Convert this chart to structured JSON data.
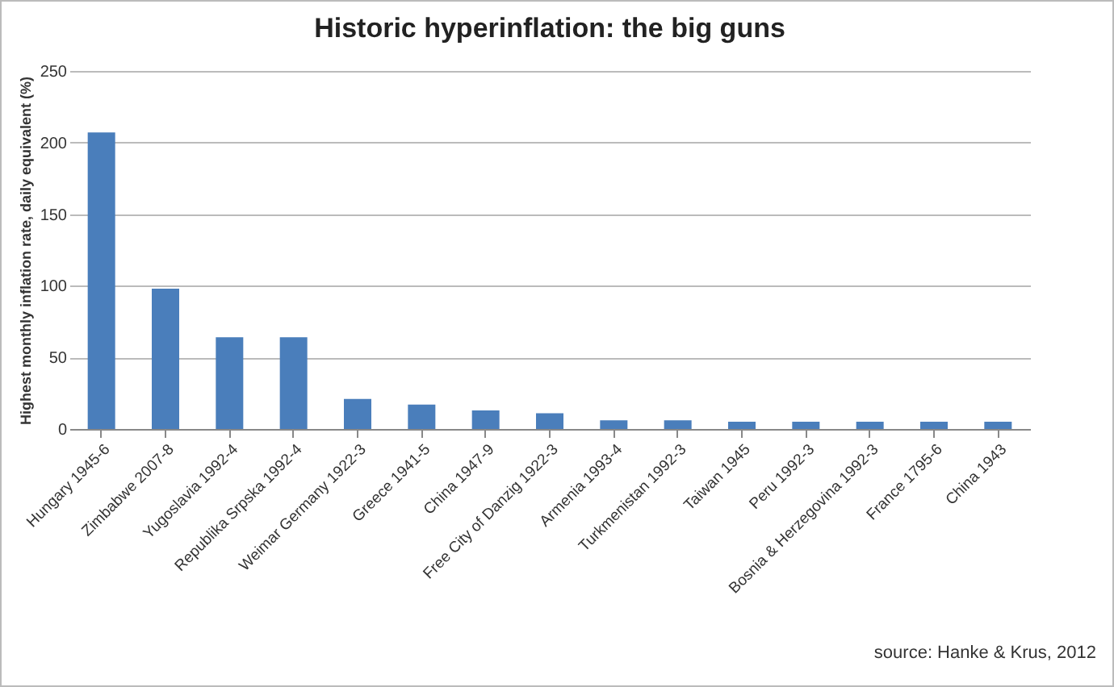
{
  "chart_data": {
    "type": "bar",
    "title": "Historic hyperinflation: the big guns",
    "ylabel": "Highest monthly inflation rate, daily equivalent (%)",
    "categories": [
      "Hungary 1945-6",
      "Zimbabwe 2007-8",
      "Yugoslavia 1992-4",
      "Republika Srpska  1992-4",
      "Weimar Germany 1922-3",
      "Greece  1941-5",
      "China 1947-9",
      "Free City of Danzig 1922-3",
      "Armenia 1993-4",
      "Turkmenistan 1992-3",
      "Taiwan 1945",
      "Peru 1992-3",
      "Bosnia & Herzegovina 1992-3",
      "France 1795-6",
      "China 1943"
    ],
    "values": [
      207,
      98,
      64,
      64,
      21,
      17,
      13,
      11,
      6,
      6,
      5,
      5,
      5,
      5,
      5
    ],
    "color": "#4a7ebb",
    "ylim": [
      0,
      250
    ],
    "yticks": [
      0,
      50,
      100,
      150,
      200,
      250
    ],
    "grid": "y",
    "annotations": [
      "source: Hanke & Krus, 2012"
    ]
  }
}
